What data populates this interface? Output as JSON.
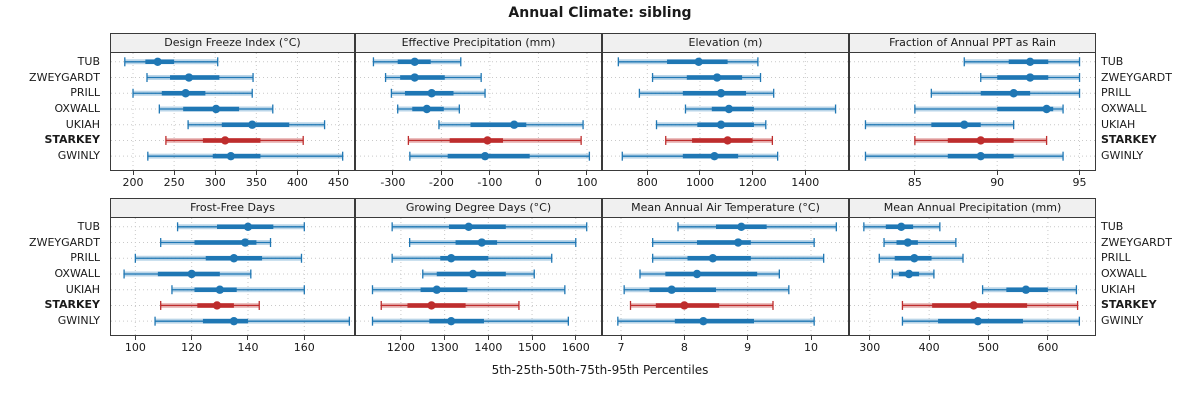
{
  "title": "Annual Climate: sibling",
  "caption": "5th-25th-50th-75th-95th Percentiles",
  "sites": [
    "TUB",
    "ZWEYGARDT",
    "PRILL",
    "OXWALL",
    "UKIAH",
    "STARKEY",
    "GWINLY"
  ],
  "highlight_site": "STARKEY",
  "colors": {
    "series": "#1f77b4",
    "highlight": "#be2d2d",
    "band_opacity": 0.3,
    "grid": "#c9c9c9",
    "border": "#3a3a3a",
    "strip_bg": "#f0f0f0",
    "text": "#1a1a1a"
  },
  "chart_data": {
    "type": "interval-dotplot",
    "percentiles": [
      5,
      25,
      50,
      75,
      95
    ],
    "layout": {
      "rows": 2,
      "cols": 4,
      "legend": "none",
      "grid": "dotted"
    },
    "panels": [
      {
        "title": "Design Freeze Index (°C)",
        "ticks": [
          200,
          250,
          300,
          350,
          400,
          450
        ],
        "xlim": [
          172,
          470
        ],
        "series": [
          {
            "site": "TUB",
            "values": [
              190,
              215,
              230,
              250,
              303
            ]
          },
          {
            "site": "ZWEYGARDT",
            "values": [
              217,
              245,
              268,
              305,
              346
            ]
          },
          {
            "site": "PRILL",
            "values": [
              200,
              235,
              264,
              288,
              345
            ]
          },
          {
            "site": "OXWALL",
            "values": [
              232,
              261,
              301,
              329,
              370
            ]
          },
          {
            "site": "UKIAH",
            "values": [
              267,
              308,
              345,
              390,
              433
            ]
          },
          {
            "site": "STARKEY",
            "values": [
              240,
              285,
              312,
              355,
              407
            ]
          },
          {
            "site": "GWINLY",
            "values": [
              218,
              297,
              319,
              355,
              455
            ]
          }
        ]
      },
      {
        "title": "Effective Precipitation (mm)",
        "ticks": [
          -300,
          -200,
          -100,
          0,
          100
        ],
        "xlim": [
          -378,
          131
        ],
        "series": [
          {
            "site": "TUB",
            "values": [
              -340,
              -290,
              -255,
              -222,
              -160
            ]
          },
          {
            "site": "ZWEYGARDT",
            "values": [
              -315,
              -285,
              -255,
              -193,
              -118
            ]
          },
          {
            "site": "PRILL",
            "values": [
              -303,
              -275,
              -220,
              -175,
              -110
            ]
          },
          {
            "site": "OXWALL",
            "values": [
              -290,
              -260,
              -230,
              -195,
              -163
            ]
          },
          {
            "site": "UKIAH",
            "values": [
              -205,
              -140,
              -50,
              -25,
              92
            ]
          },
          {
            "site": "STARKEY",
            "values": [
              -268,
              -183,
              -105,
              -73,
              88
            ]
          },
          {
            "site": "GWINLY",
            "values": [
              -265,
              -187,
              -110,
              -18,
              105
            ]
          }
        ]
      },
      {
        "title": "Elevation (m)",
        "ticks": [
          800,
          1000,
          1200,
          1400
        ],
        "xlim": [
          628,
          1566
        ],
        "series": [
          {
            "site": "TUB",
            "values": [
              690,
              875,
              995,
              1105,
              1220
            ]
          },
          {
            "site": "ZWEYGARDT",
            "values": [
              820,
              950,
              1065,
              1160,
              1230
            ]
          },
          {
            "site": "PRILL",
            "values": [
              770,
              935,
              1080,
              1175,
              1280
            ]
          },
          {
            "site": "OXWALL",
            "values": [
              945,
              1045,
              1110,
              1205,
              1515
            ]
          },
          {
            "site": "UKIAH",
            "values": [
              835,
              990,
              1080,
              1205,
              1250
            ]
          },
          {
            "site": "STARKEY",
            "values": [
              870,
              970,
              1105,
              1200,
              1275
            ]
          },
          {
            "site": "GWINLY",
            "values": [
              705,
              935,
              1055,
              1145,
              1295
            ]
          }
        ]
      },
      {
        "title": "Fraction of Annual PPT as Rain",
        "ticks": [
          85,
          90,
          95
        ],
        "xlim": [
          81,
          96
        ],
        "series": [
          {
            "site": "TUB",
            "values": [
              88,
              90.7,
              92,
              93.1,
              95
            ]
          },
          {
            "site": "ZWEYGARDT",
            "values": [
              89,
              90,
              92,
              93.1,
              95
            ]
          },
          {
            "site": "PRILL",
            "values": [
              86,
              89,
              91,
              92,
              95
            ]
          },
          {
            "site": "OXWALL",
            "values": [
              85,
              90,
              93,
              93.4,
              94
            ]
          },
          {
            "site": "UKIAH",
            "values": [
              82,
              86,
              88,
              89,
              91
            ]
          },
          {
            "site": "STARKEY",
            "values": [
              85,
              87,
              89,
              91,
              93
            ]
          },
          {
            "site": "GWINLY",
            "values": [
              82,
              87,
              89,
              91,
              94
            ]
          }
        ]
      },
      {
        "title": "Frost-Free Days",
        "ticks": [
          100,
          120,
          140,
          160
        ],
        "xlim": [
          91,
          178
        ],
        "series": [
          {
            "site": "TUB",
            "values": [
              115,
              129,
              140,
              149,
              160
            ]
          },
          {
            "site": "ZWEYGARDT",
            "values": [
              109,
              121,
              139,
              143,
              148
            ]
          },
          {
            "site": "PRILL",
            "values": [
              100,
              125,
              135,
              145,
              159
            ]
          },
          {
            "site": "OXWALL",
            "values": [
              96,
              108,
              120,
              130,
              141
            ]
          },
          {
            "site": "UKIAH",
            "values": [
              113,
              121,
              130,
              136,
              160
            ]
          },
          {
            "site": "STARKEY",
            "values": [
              109,
              122,
              129,
              135,
              144
            ]
          },
          {
            "site": "GWINLY",
            "values": [
              107,
              124,
              135,
              140,
              176
            ]
          }
        ]
      },
      {
        "title": "Growing Degree Days (°C)",
        "ticks": [
          1200,
          1300,
          1400,
          1500,
          1600
        ],
        "xlim": [
          1095,
          1660
        ],
        "series": [
          {
            "site": "TUB",
            "values": [
              1180,
              1310,
              1355,
              1440,
              1625
            ]
          },
          {
            "site": "ZWEYGARDT",
            "values": [
              1220,
              1325,
              1385,
              1420,
              1600
            ]
          },
          {
            "site": "PRILL",
            "values": [
              1180,
              1290,
              1315,
              1400,
              1545
            ]
          },
          {
            "site": "OXWALL",
            "values": [
              1250,
              1282,
              1365,
              1440,
              1505
            ]
          },
          {
            "site": "UKIAH",
            "values": [
              1135,
              1245,
              1282,
              1352,
              1575
            ]
          },
          {
            "site": "STARKEY",
            "values": [
              1155,
              1215,
              1270,
              1348,
              1470
            ]
          },
          {
            "site": "GWINLY",
            "values": [
              1135,
              1265,
              1315,
              1390,
              1583
            ]
          }
        ]
      },
      {
        "title": "Mean Annual Air Temperature (°C)",
        "ticks": [
          7,
          8,
          9,
          10
        ],
        "xlim": [
          6.7,
          10.6
        ],
        "series": [
          {
            "site": "TUB",
            "values": [
              7.9,
              8.5,
              8.9,
              9.3,
              10.4
            ]
          },
          {
            "site": "ZWEYGARDT",
            "values": [
              7.5,
              8.2,
              8.85,
              9.05,
              10.05
            ]
          },
          {
            "site": "PRILL",
            "values": [
              7.5,
              8.05,
              8.45,
              9.05,
              10.2
            ]
          },
          {
            "site": "OXWALL",
            "values": [
              7.3,
              7.7,
              8.2,
              9.15,
              9.5
            ]
          },
          {
            "site": "UKIAH",
            "values": [
              7.05,
              7.45,
              7.8,
              8.5,
              9.65
            ]
          },
          {
            "site": "STARKEY",
            "values": [
              7.15,
              7.55,
              8.0,
              8.55,
              9.4
            ]
          },
          {
            "site": "GWINLY",
            "values": [
              6.95,
              7.85,
              8.3,
              9.1,
              10.05
            ]
          }
        ]
      },
      {
        "title": "Mean Annual Precipitation (mm)",
        "ticks": [
          300,
          400,
          500,
          600
        ],
        "xlim": [
          265,
          681
        ],
        "series": [
          {
            "site": "TUB",
            "values": [
              290,
              327,
              353,
              373,
              418
            ]
          },
          {
            "site": "ZWEYGARDT",
            "values": [
              324,
              345,
              364,
              381,
              445
            ]
          },
          {
            "site": "PRILL",
            "values": [
              316,
              342,
              375,
              404,
              457
            ]
          },
          {
            "site": "OXWALL",
            "values": [
              338,
              349,
              366,
              383,
              408
            ]
          },
          {
            "site": "UKIAH",
            "values": [
              490,
              530,
              563,
              600,
              648
            ]
          },
          {
            "site": "STARKEY",
            "values": [
              355,
              405,
              475,
              565,
              650
            ]
          },
          {
            "site": "GWINLY",
            "values": [
              355,
              415,
              482,
              558,
              653
            ]
          }
        ]
      }
    ]
  }
}
